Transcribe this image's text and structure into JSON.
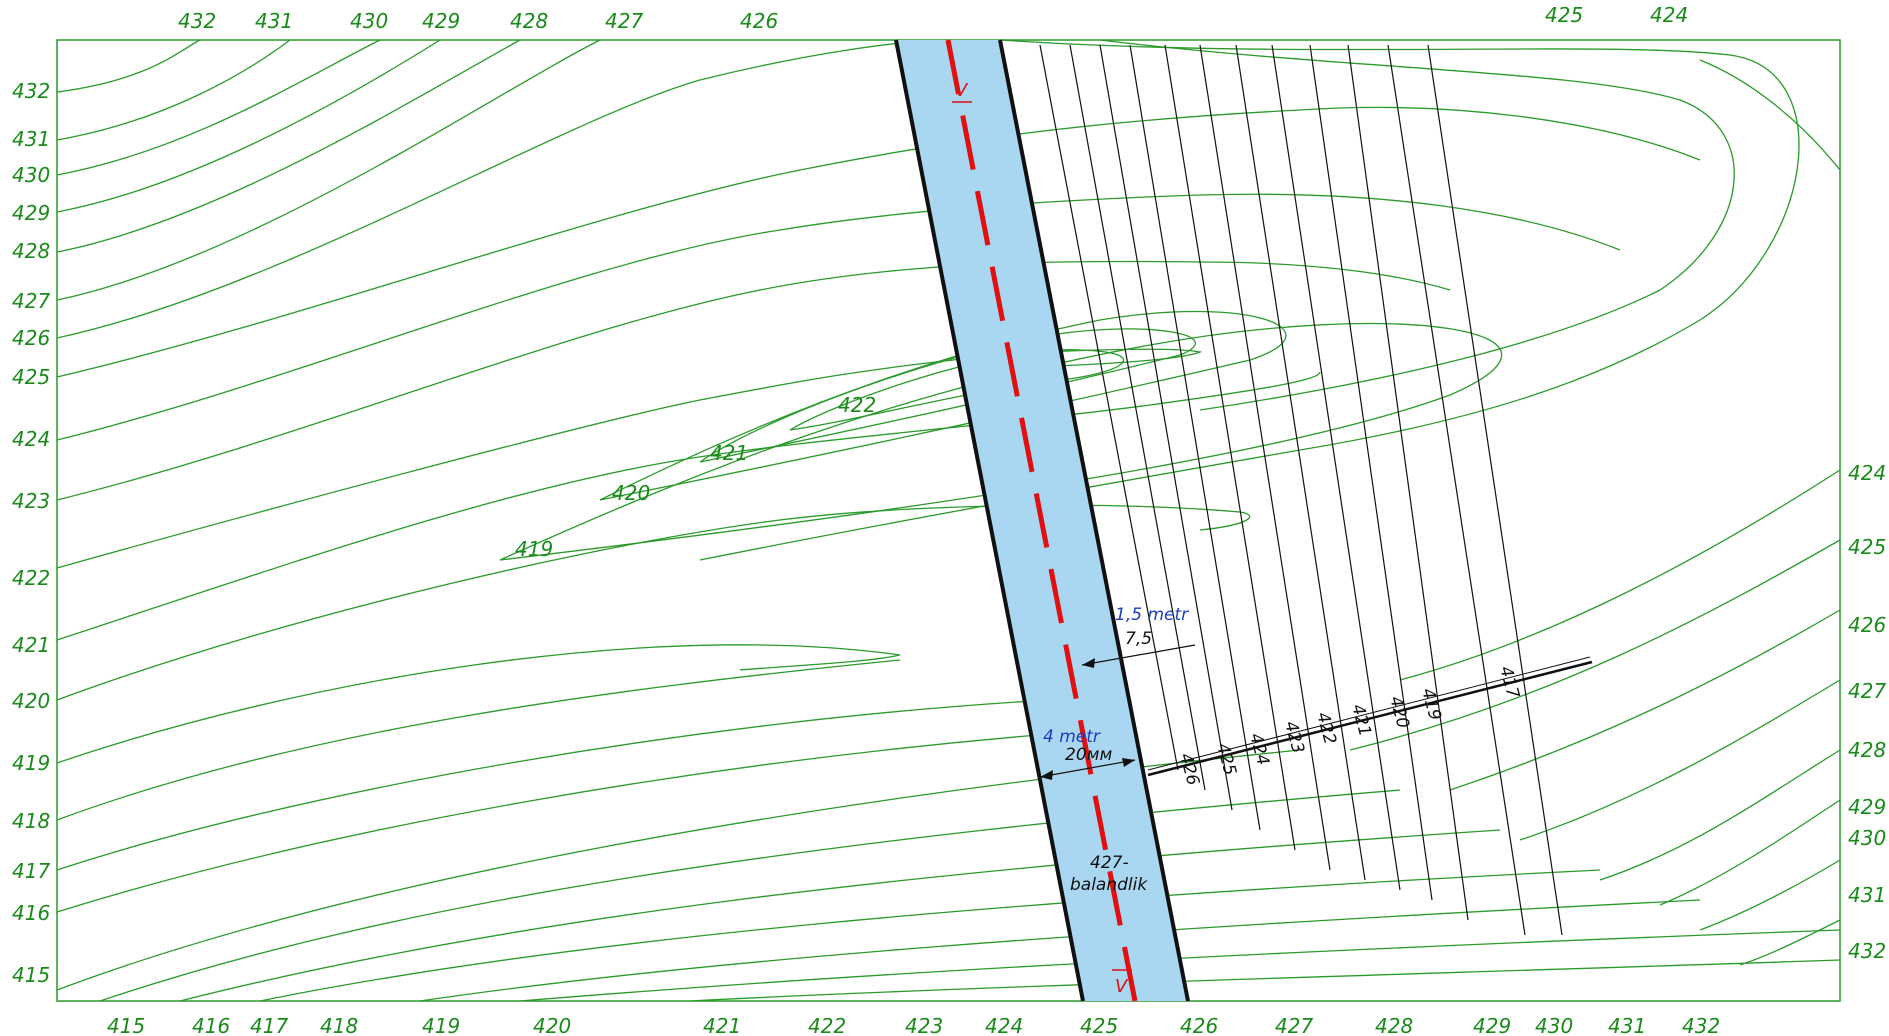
{
  "map": {
    "top_labels": [
      "432",
      "431",
      "430",
      "429",
      "428",
      "427",
      "426",
      "425",
      "424"
    ],
    "left_labels": [
      "432",
      "431",
      "430",
      "429",
      "428",
      "427",
      "426",
      "425",
      "424",
      "423",
      "422",
      "421",
      "420",
      "419",
      "418",
      "417",
      "416",
      "415"
    ],
    "right_labels": [
      "424",
      "425",
      "426",
      "427",
      "428",
      "429",
      "430",
      "431",
      "432"
    ],
    "bottom_labels": [
      "415",
      "416",
      "417",
      "418",
      "419",
      "420",
      "421",
      "422",
      "423",
      "424",
      "425",
      "426",
      "427",
      "428",
      "429",
      "430",
      "431",
      "432"
    ],
    "valley_labels": [
      "422",
      "421",
      "420",
      "419"
    ],
    "cross_labels": [
      "426",
      "425",
      "424",
      "423",
      "422",
      "421",
      "420",
      "419",
      "417"
    ],
    "channel": {
      "width_top_metric": "1,5 metr",
      "width_top_value": "7,5",
      "width_main_metric": "4 metr",
      "width_main_value": "20мм",
      "elevation_value": "427-",
      "elevation_word": "balandlik"
    },
    "section_marker": "V",
    "colors": {
      "contour": "#2a9a2a",
      "channel_fill": "#a9d7f2",
      "axis": "#e01010",
      "dim_blue": "#1a3dbf"
    }
  }
}
